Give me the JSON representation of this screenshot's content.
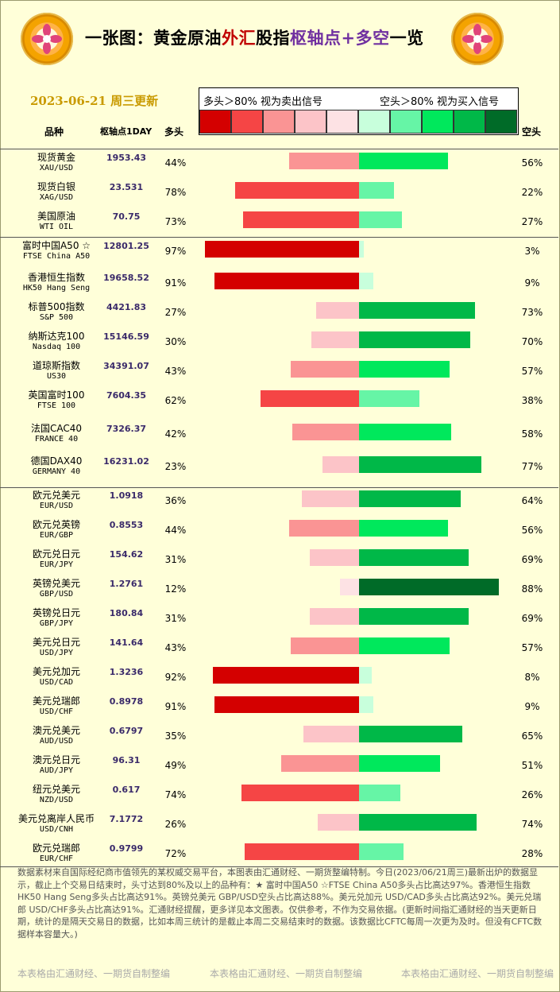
{
  "header": {
    "title_a": "一张图：黄金原油",
    "title_b": "外汇",
    "title_c": "股指",
    "title_d": "枢轴点+多空",
    "title_e": "一览",
    "date": "2023-06-21 周三更新",
    "legend_left": "多头＞80% 视为卖出信号",
    "legend_right": "空头＞80% 视为买入信号"
  },
  "columns": {
    "name": "品种",
    "pivot": "枢轴点1DAY",
    "long": "多头",
    "short": "空头"
  },
  "colors": {
    "long_scale": [
      "#d40000",
      "#f54545",
      "#fa9494",
      "#fcc4c8",
      "#fde2e4"
    ],
    "short_scale": [
      "#c8ffdc",
      "#66f5a6",
      "#00e85c",
      "#00b848",
      "#006b28"
    ]
  },
  "chart_data": {
    "type": "bar",
    "series": [
      {
        "name": "多头",
        "unit": "%"
      },
      {
        "name": "空头",
        "unit": "%"
      }
    ],
    "rows": [
      {
        "cn": "现货黄金",
        "en": "XAU/USD",
        "pivot": "1953.43",
        "long": 44,
        "short": 56
      },
      {
        "cn": "现货白银",
        "en": "XAG/USD",
        "pivot": "23.531",
        "long": 78,
        "short": 22
      },
      {
        "cn": "美国原油",
        "en": "WTI OIL",
        "pivot": "70.75",
        "long": 73,
        "short": 27
      },
      {
        "cn": "富时中国A50 ☆",
        "en": "FTSE China A50",
        "pivot": "12801.25",
        "long": 97,
        "short": 3
      },
      {
        "cn": "香港恒生指数",
        "en": "HK50 Hang Seng",
        "pivot": "19658.52",
        "long": 91,
        "short": 9
      },
      {
        "cn": "标普500指数",
        "en": "S&P 500",
        "pivot": "4421.83",
        "long": 27,
        "short": 73
      },
      {
        "cn": "纳斯达克100",
        "en": "Nasdaq 100",
        "pivot": "15146.59",
        "long": 30,
        "short": 70
      },
      {
        "cn": "道琼斯指数",
        "en": "US30",
        "pivot": "34391.07",
        "long": 43,
        "short": 57
      },
      {
        "cn": "英国富时100",
        "en": "FTSE 100",
        "pivot": "7604.35",
        "long": 62,
        "short": 38
      },
      {
        "cn": "法国CAC40",
        "en": "FRANCE 40",
        "pivot": "7326.37",
        "long": 42,
        "short": 58
      },
      {
        "cn": "德国DAX40",
        "en": "GERMANY 40",
        "pivot": "16231.02",
        "long": 23,
        "short": 77
      },
      {
        "cn": "欧元兑美元",
        "en": "EUR/USD",
        "pivot": "1.0918",
        "long": 36,
        "short": 64
      },
      {
        "cn": "欧元兑英镑",
        "en": "EUR/GBP",
        "pivot": "0.8553",
        "long": 44,
        "short": 56
      },
      {
        "cn": "欧元兑日元",
        "en": "EUR/JPY",
        "pivot": "154.62",
        "long": 31,
        "short": 69
      },
      {
        "cn": "英镑兑美元",
        "en": "GBP/USD",
        "pivot": "1.2761",
        "long": 12,
        "short": 88
      },
      {
        "cn": "英镑兑日元",
        "en": "GBP/JPY",
        "pivot": "180.84",
        "long": 31,
        "short": 69
      },
      {
        "cn": "美元兑日元",
        "en": "USD/JPY",
        "pivot": "141.64",
        "long": 43,
        "short": 57
      },
      {
        "cn": "美元兑加元",
        "en": "USD/CAD",
        "pivot": "1.3236",
        "long": 92,
        "short": 8
      },
      {
        "cn": "美元兑瑞郎",
        "en": "USD/CHF",
        "pivot": "0.8978",
        "long": 91,
        "short": 9
      },
      {
        "cn": "澳元兑美元",
        "en": "AUD/USD",
        "pivot": "0.6797",
        "long": 35,
        "short": 65
      },
      {
        "cn": "澳元兑日元",
        "en": "AUD/JPY",
        "pivot": "96.31",
        "long": 49,
        "short": 51
      },
      {
        "cn": "纽元兑美元",
        "en": "NZD/USD",
        "pivot": "0.617",
        "long": 74,
        "short": 26
      },
      {
        "cn": "美元兑离岸人民币",
        "en": "USD/CNH",
        "pivot": "7.1772",
        "long": 26,
        "short": 74
      },
      {
        "cn": "欧元兑瑞郎",
        "en": "EUR/CHF",
        "pivot": "0.9799",
        "long": 72,
        "short": 28
      }
    ]
  },
  "note": "数据素材来自国际经纪商市值领先的某权威交易平台，本图表由汇通财经、一期货整编特制。今日(2023/06/21周三)最新出炉的数据显示，截止上个交易日结束时，头寸达到80%及以上的品种有：★ 富时中国A50 ☆FTSE China A50多头占比高达97%。香港恒生指数 HK50 Hang Seng多头占比高达91%。英镑兑美元 GBP/USD空头占比高达88%。美元兑加元 USD/CAD多头占比高达92%。美元兑瑞郎 USD/CHF多头占比高达91%。汇通财经提醒，更多详见本文图表。仅供参考，不作为交易依据。(更新时间指汇通财经的当天更新日期，统计的是隔天交易日的数据，比如本周三统计的是截止本周二交易结束时的数据。该数据比CFTC每周一次更为及时。但没有CFTC数据样本容量大。)",
  "footer": [
    "本表格由汇通财经、一期货自制整编",
    "本表格由汇通财经、一期货自制整编",
    "本表格由汇通财经、一期货自制整编"
  ]
}
